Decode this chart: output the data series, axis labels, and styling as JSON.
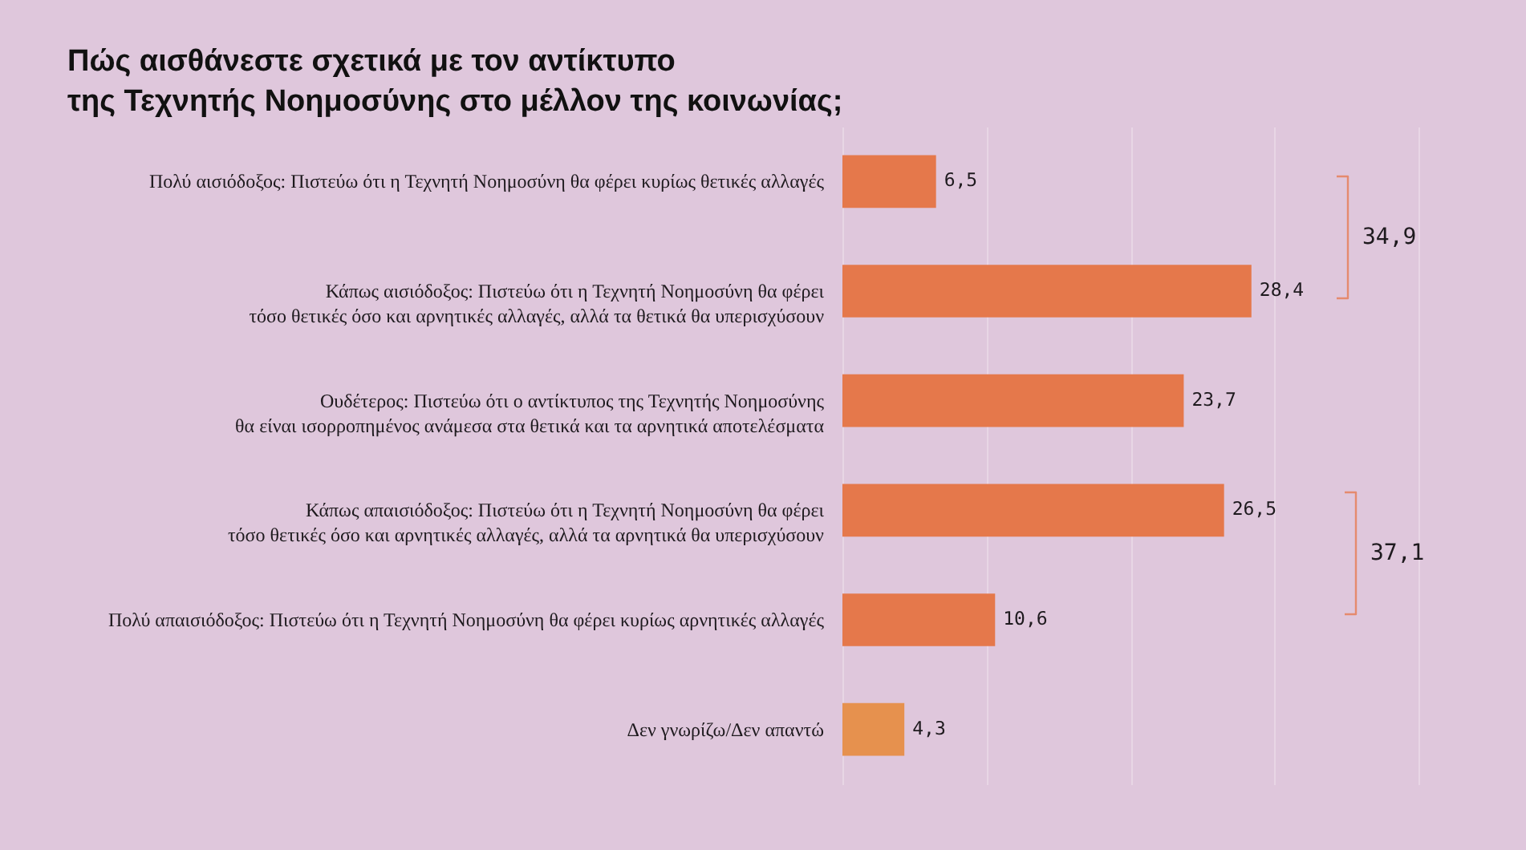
{
  "chart_data": {
    "type": "bar",
    "orientation": "horizontal",
    "title": "Πώς αισθάνεστε σχετικά με τον αντίκτυπο\nτης Τεχνητής Νοημοσύνης στο μέλλον της κοινωνίας;",
    "categories": [
      "Πολύ αισιόδοξος: Πιστεύω ότι η Τεχνητή Νοημοσύνη θα φέρει κυρίως θετικές αλλαγές",
      "Κάπως αισιόδοξος: Πιστεύω ότι η Τεχνητή Νοημοσύνη θα φέρει\nτόσο θετικές όσο και αρνητικές αλλαγές, αλλά τα θετικά θα υπερισχύσουν",
      "Ουδέτερος: Πιστεύω ότι ο αντίκτυπος της Τεχνητής Νοημοσύνης\nθα είναι ισορροπημένος ανάμεσα στα θετικά και τα αρνητικά αποτελέσματα",
      "Κάπως απαισιόδοξος: Πιστεύω ότι η Τεχνητή Νοημοσύνη θα φέρει\nτόσο θετικές όσο και αρνητικές αλλαγές, αλλά τα αρνητικά θα υπερισχύσουν",
      "Πολύ απαισιόδοξος: Πιστεύω ότι η Τεχνητή Νοημοσύνη θα φέρει κυρίως αρνητικές αλλαγές",
      "Δεν γνωρίζω/Δεν απαντώ"
    ],
    "values": [
      6.5,
      28.4,
      23.7,
      26.5,
      10.6,
      4.3
    ],
    "colors": [
      "#e5784b",
      "#e5784b",
      "#e5784b",
      "#e5784b",
      "#e5784b",
      "#e6914e"
    ],
    "value_labels": [
      "6,5",
      "28,4",
      "23,7",
      "26,5",
      "10,6",
      "4,3"
    ],
    "xlim": [
      0,
      40
    ],
    "xticks": [
      0,
      10,
      20,
      30,
      40
    ],
    "grid": "x",
    "tick_labels": "y",
    "annotations": [
      "34,9",
      "37,1"
    ]
  }
}
